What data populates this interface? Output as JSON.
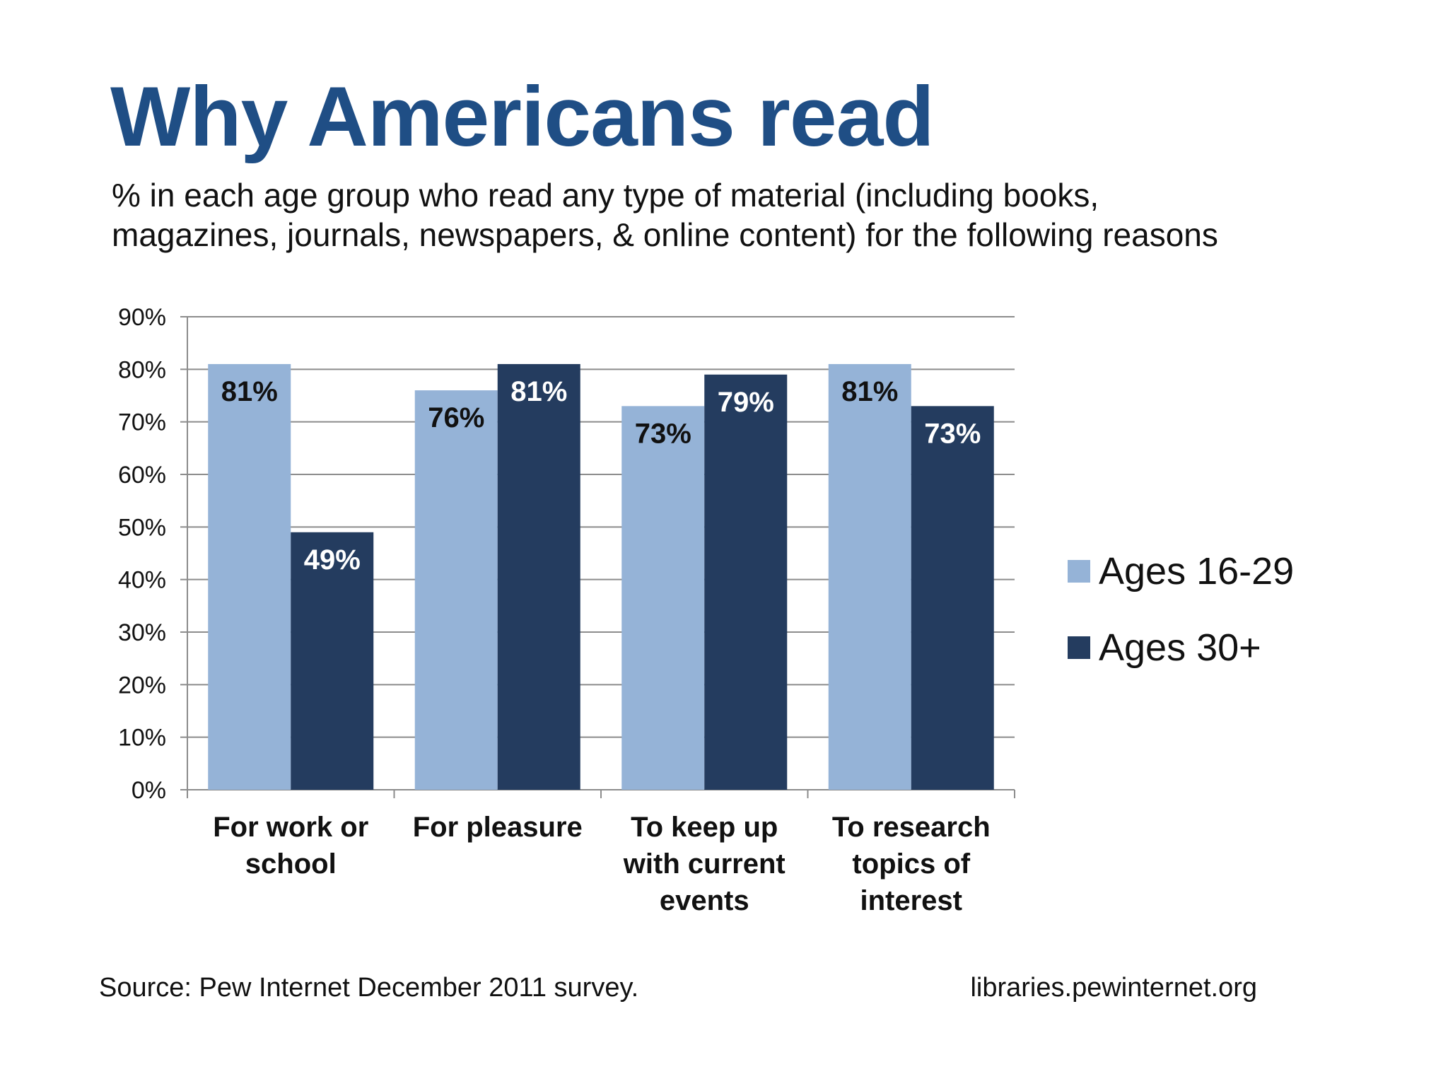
{
  "title": "Why Americans read",
  "subtitle_lines": [
    "% in each age group who read any type of material (including books,",
    "magazines, journals, newspapers, & online content) for the following reasons"
  ],
  "chart_data": {
    "type": "bar",
    "categories": [
      [
        "For work or",
        "school"
      ],
      [
        "For pleasure"
      ],
      [
        "To keep up",
        "with current",
        "events"
      ],
      [
        "To research",
        "topics of",
        "interest"
      ]
    ],
    "series": [
      {
        "name": "Ages 16-29",
        "values": [
          81,
          76,
          73,
          81
        ],
        "labels": [
          "81%",
          "76%",
          "73%",
          "81%"
        ],
        "color": "#95b3d7",
        "label_color": "#111111"
      },
      {
        "name": "Ages 30+",
        "values": [
          49,
          81,
          79,
          73
        ],
        "labels": [
          "49%",
          "81%",
          "79%",
          "73%"
        ],
        "color": "#243c5f",
        "label_color": "#ffffff"
      }
    ],
    "ylim": [
      0,
      90
    ],
    "yticks": [
      "0%",
      "10%",
      "20%",
      "30%",
      "40%",
      "50%",
      "60%",
      "70%",
      "80%",
      "90%"
    ],
    "grid": true,
    "legend_position": "right"
  },
  "footer": {
    "source": "Source: Pew Internet December 2011 survey.",
    "url": "libraries.pewinternet.org"
  }
}
